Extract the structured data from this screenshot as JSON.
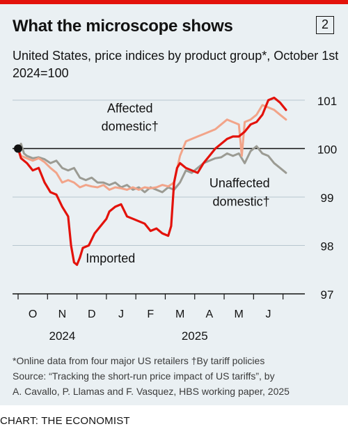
{
  "header": {
    "title": "What the microscope shows",
    "badge": "2",
    "subtitle": "United States, price indices by product group*, October 1st 2024=100"
  },
  "chart_data": {
    "type": "line",
    "title": "What the microscope shows",
    "subtitle": "United States, price indices by product group*, October 1st 2024=100",
    "ylim": [
      97,
      101.2
    ],
    "yticks": [
      97,
      98,
      99,
      100,
      101
    ],
    "xlim": [
      0,
      9.6
    ],
    "xticks": [
      {
        "label": "O",
        "x": 0.5
      },
      {
        "label": "N",
        "x": 1.5
      },
      {
        "label": "D",
        "x": 2.5
      },
      {
        "label": "J",
        "x": 3.5
      },
      {
        "label": "F",
        "x": 4.5
      },
      {
        "label": "M",
        "x": 5.5
      },
      {
        "label": "A",
        "x": 6.5
      },
      {
        "label": "M",
        "x": 7.5
      },
      {
        "label": "J",
        "x": 8.5
      }
    ],
    "year_labels": [
      {
        "label": "2024",
        "x": 1.5
      },
      {
        "label": "2025",
        "x": 6.0
      }
    ],
    "grid": true,
    "series": [
      {
        "name": "Unaffected domestic†",
        "color": "#9b9b93",
        "points": [
          [
            0,
            100
          ],
          [
            0.1,
            100.1
          ],
          [
            0.2,
            99.9
          ],
          [
            0.3,
            99.85
          ],
          [
            0.5,
            99.8
          ],
          [
            0.7,
            99.82
          ],
          [
            0.9,
            99.78
          ],
          [
            1.1,
            99.7
          ],
          [
            1.3,
            99.75
          ],
          [
            1.5,
            99.6
          ],
          [
            1.7,
            99.55
          ],
          [
            1.9,
            99.6
          ],
          [
            2.1,
            99.4
          ],
          [
            2.3,
            99.35
          ],
          [
            2.5,
            99.4
          ],
          [
            2.7,
            99.3
          ],
          [
            2.9,
            99.3
          ],
          [
            3.1,
            99.25
          ],
          [
            3.3,
            99.3
          ],
          [
            3.5,
            99.2
          ],
          [
            3.7,
            99.25
          ],
          [
            3.9,
            99.15
          ],
          [
            4.1,
            99.2
          ],
          [
            4.3,
            99.1
          ],
          [
            4.5,
            99.2
          ],
          [
            4.7,
            99.15
          ],
          [
            4.9,
            99.1
          ],
          [
            5.1,
            99.2
          ],
          [
            5.3,
            99.15
          ],
          [
            5.5,
            99.3
          ],
          [
            5.7,
            99.55
          ],
          [
            5.9,
            99.5
          ],
          [
            6.1,
            99.6
          ],
          [
            6.3,
            99.7
          ],
          [
            6.5,
            99.75
          ],
          [
            6.7,
            99.8
          ],
          [
            6.9,
            99.82
          ],
          [
            7.1,
            99.9
          ],
          [
            7.3,
            99.85
          ],
          [
            7.5,
            99.9
          ],
          [
            7.7,
            99.7
          ],
          [
            7.9,
            99.95
          ],
          [
            8.1,
            100.05
          ],
          [
            8.3,
            99.9
          ],
          [
            8.5,
            99.85
          ],
          [
            8.7,
            99.7
          ],
          [
            8.9,
            99.6
          ],
          [
            9.1,
            99.5
          ]
        ]
      },
      {
        "name": "Affected domestic†",
        "color": "#f2a489",
        "points": [
          [
            0,
            100
          ],
          [
            0.1,
            99.85
          ],
          [
            0.3,
            99.8
          ],
          [
            0.5,
            99.75
          ],
          [
            0.7,
            99.8
          ],
          [
            0.9,
            99.72
          ],
          [
            1.1,
            99.6
          ],
          [
            1.3,
            99.5
          ],
          [
            1.5,
            99.3
          ],
          [
            1.7,
            99.35
          ],
          [
            1.9,
            99.3
          ],
          [
            2.1,
            99.2
          ],
          [
            2.3,
            99.25
          ],
          [
            2.5,
            99.22
          ],
          [
            2.7,
            99.2
          ],
          [
            2.9,
            99.25
          ],
          [
            3.1,
            99.15
          ],
          [
            3.3,
            99.2
          ],
          [
            3.5,
            99.18
          ],
          [
            3.7,
            99.15
          ],
          [
            3.9,
            99.2
          ],
          [
            4.1,
            99.15
          ],
          [
            4.3,
            99.2
          ],
          [
            4.5,
            99.18
          ],
          [
            4.7,
            99.2
          ],
          [
            4.9,
            99.25
          ],
          [
            5.1,
            99.22
          ],
          [
            5.3,
            99.3
          ],
          [
            5.5,
            99.85
          ],
          [
            5.7,
            100.15
          ],
          [
            5.9,
            100.2
          ],
          [
            6.1,
            100.25
          ],
          [
            6.3,
            100.3
          ],
          [
            6.5,
            100.35
          ],
          [
            6.7,
            100.4
          ],
          [
            6.9,
            100.5
          ],
          [
            7.1,
            100.6
          ],
          [
            7.3,
            100.55
          ],
          [
            7.5,
            100.5
          ],
          [
            7.6,
            99.85
          ],
          [
            7.7,
            100.55
          ],
          [
            7.9,
            100.6
          ],
          [
            8.1,
            100.7
          ],
          [
            8.3,
            100.9
          ],
          [
            8.5,
            100.85
          ],
          [
            8.7,
            100.8
          ],
          [
            8.9,
            100.7
          ],
          [
            9.1,
            100.6
          ]
        ]
      },
      {
        "name": "Imported",
        "color": "#e3120b",
        "points": [
          [
            0,
            100
          ],
          [
            0.1,
            99.8
          ],
          [
            0.3,
            99.7
          ],
          [
            0.5,
            99.55
          ],
          [
            0.7,
            99.6
          ],
          [
            0.9,
            99.3
          ],
          [
            1.1,
            99.1
          ],
          [
            1.3,
            99.05
          ],
          [
            1.5,
            98.8
          ],
          [
            1.7,
            98.6
          ],
          [
            1.8,
            98.0
          ],
          [
            1.9,
            97.65
          ],
          [
            2.0,
            97.6
          ],
          [
            2.1,
            97.75
          ],
          [
            2.2,
            97.95
          ],
          [
            2.4,
            98.0
          ],
          [
            2.6,
            98.25
          ],
          [
            2.8,
            98.4
          ],
          [
            3.0,
            98.55
          ],
          [
            3.1,
            98.7
          ],
          [
            3.3,
            98.8
          ],
          [
            3.5,
            98.85
          ],
          [
            3.7,
            98.6
          ],
          [
            3.9,
            98.55
          ],
          [
            4.1,
            98.5
          ],
          [
            4.3,
            98.45
          ],
          [
            4.5,
            98.3
          ],
          [
            4.7,
            98.35
          ],
          [
            4.9,
            98.25
          ],
          [
            5.1,
            98.2
          ],
          [
            5.2,
            98.4
          ],
          [
            5.3,
            99.3
          ],
          [
            5.4,
            99.6
          ],
          [
            5.5,
            99.7
          ],
          [
            5.7,
            99.6
          ],
          [
            5.9,
            99.55
          ],
          [
            6.1,
            99.5
          ],
          [
            6.3,
            99.7
          ],
          [
            6.5,
            99.85
          ],
          [
            6.7,
            100.0
          ],
          [
            6.9,
            100.1
          ],
          [
            7.1,
            100.2
          ],
          [
            7.3,
            100.25
          ],
          [
            7.5,
            100.25
          ],
          [
            7.7,
            100.35
          ],
          [
            7.9,
            100.5
          ],
          [
            8.1,
            100.55
          ],
          [
            8.3,
            100.7
          ],
          [
            8.5,
            101.0
          ],
          [
            8.7,
            101.05
          ],
          [
            8.9,
            100.95
          ],
          [
            9.1,
            100.8
          ]
        ]
      }
    ],
    "labels": {
      "imported": "Imported",
      "affected_line1": "Affected",
      "affected_line2": "domestic†",
      "unaffected_line1": "Unaffected",
      "unaffected_line2": "domestic†"
    }
  },
  "footer": {
    "footnote_line1": "*Online data from four major US retailers  †By tariff policies",
    "source_line1": "Source: “Tracking the short-run price impact of US tariffs”, by",
    "source_line2": "A. Cavallo, P. Llamas and F. Vasquez, HBS working paper, 2025",
    "credit": "CHART: THE ECONOMIST"
  }
}
